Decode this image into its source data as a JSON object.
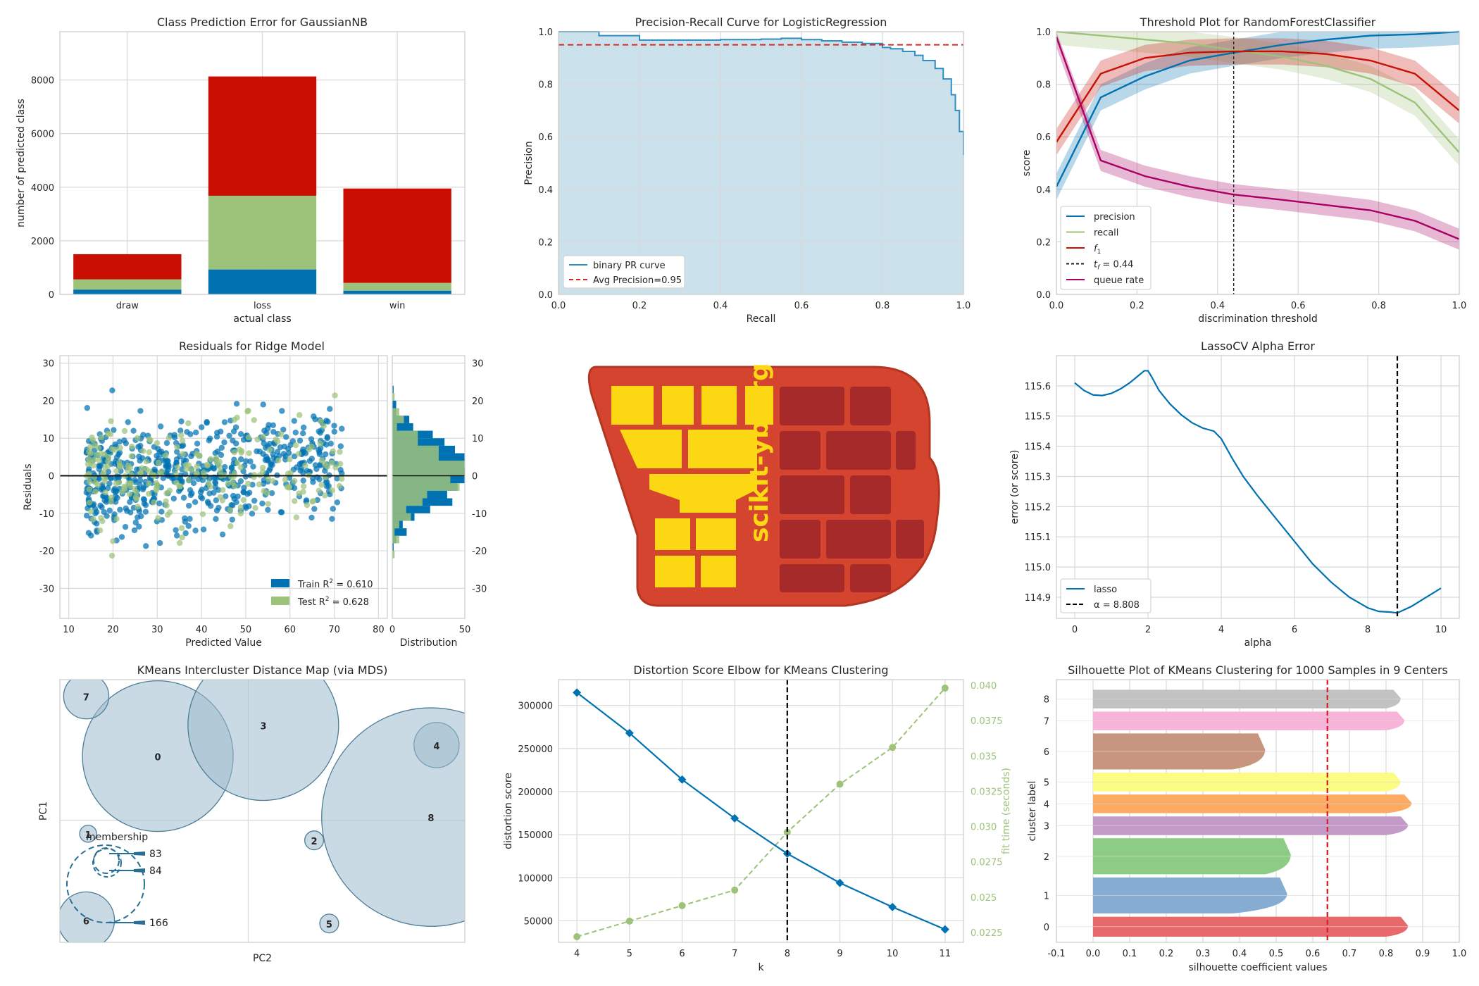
{
  "chart_data": [
    {
      "id": "class-prediction-error",
      "type": "bar",
      "title": "Class Prediction Error for GaussianNB",
      "xlabel": "actual class",
      "ylabel": "number of predicted class",
      "categories": [
        "draw",
        "loss",
        "win"
      ],
      "ylim": [
        0,
        9800
      ],
      "yticks": [
        0,
        2000,
        4000,
        6000,
        8000
      ],
      "series": [
        {
          "color": "#0072b2",
          "values": [
            180,
            930,
            140
          ]
        },
        {
          "color": "#9dc27a",
          "values": [
            380,
            2750,
            290
          ]
        },
        {
          "color": "#c90f03",
          "values": [
            940,
            4450,
            3520
          ]
        }
      ],
      "grid": true
    },
    {
      "id": "precision-recall",
      "type": "area",
      "title": "Precision-Recall Curve for LogisticRegression",
      "xlabel": "Recall",
      "ylabel": "Precision",
      "xlim": [
        0,
        1
      ],
      "ylim": [
        0,
        1
      ],
      "xticks": [
        0.0,
        0.2,
        0.4,
        0.6,
        0.8,
        1.0
      ],
      "yticks": [
        0.0,
        0.2,
        0.4,
        0.6,
        0.8,
        1.0
      ],
      "series": [
        {
          "name": "binary PR curve",
          "color": "#2f8dbf",
          "x": [
            0,
            0.1,
            0.1,
            0.2,
            0.2,
            0.3,
            0.4,
            0.5,
            0.55,
            0.6,
            0.65,
            0.7,
            0.75,
            0.78,
            0.8,
            0.82,
            0.85,
            0.88,
            0.9,
            0.93,
            0.95,
            0.97,
            0.98,
            0.99,
            1.0
          ],
          "y": [
            1.0,
            1.0,
            0.985,
            0.975,
            0.968,
            0.968,
            0.97,
            0.972,
            0.975,
            0.97,
            0.965,
            0.96,
            0.955,
            0.955,
            0.94,
            0.935,
            0.925,
            0.91,
            0.89,
            0.86,
            0.82,
            0.76,
            0.7,
            0.62,
            0.53
          ]
        },
        {
          "name": "Avg Precision=0.95",
          "color": "#d62728",
          "value": 0.95,
          "style": "dashed"
        }
      ],
      "legend": "lower-left",
      "grid": true
    },
    {
      "id": "threshold-plot",
      "type": "line",
      "title": "Threshold Plot for RandomForestClassifier",
      "xlabel": "discrimination threshold",
      "ylabel": "score",
      "xlim": [
        0,
        1
      ],
      "ylim": [
        0,
        1
      ],
      "xticks": [
        0.0,
        0.2,
        0.4,
        0.6,
        0.8,
        1.0
      ],
      "yticks": [
        0.0,
        0.2,
        0.4,
        0.6,
        0.8,
        1.0
      ],
      "x": [
        0,
        0.11,
        0.22,
        0.33,
        0.44,
        0.56,
        0.67,
        0.78,
        0.89,
        1.0
      ],
      "series": [
        {
          "name": "precision",
          "color": "#0072b2",
          "values": [
            0.41,
            0.75,
            0.83,
            0.89,
            0.92,
            0.95,
            0.97,
            0.985,
            0.99,
            1.0
          ],
          "band": 0.05
        },
        {
          "name": "recall",
          "color": "#9dc27a",
          "values": [
            1.0,
            0.985,
            0.97,
            0.955,
            0.93,
            0.905,
            0.87,
            0.82,
            0.73,
            0.54
          ],
          "band": 0.05
        },
        {
          "name": "f1",
          "color": "#c90f03",
          "values": [
            0.58,
            0.84,
            0.9,
            0.92,
            0.925,
            0.925,
            0.915,
            0.89,
            0.84,
            0.7
          ],
          "band": 0.05
        },
        {
          "name": "queue rate",
          "color": "#aa0064",
          "values": [
            0.98,
            0.51,
            0.45,
            0.41,
            0.38,
            0.36,
            0.34,
            0.32,
            0.28,
            0.21
          ],
          "band": 0.04
        }
      ],
      "threshold": {
        "label": "t_f = 0.44",
        "value": 0.44
      },
      "legend_labels": [
        "precision",
        "recall",
        "f",
        "1",
        "t",
        "f",
        " = 0.44",
        "queue rate"
      ],
      "legend": "lower-left",
      "grid": true
    },
    {
      "id": "residuals",
      "type": "scatter",
      "title": "Residuals for Ridge Model",
      "xlabel": "Predicted Value",
      "ylabel": "Residuals",
      "hist_xlabel": "Distribution",
      "xlim": [
        8,
        82
      ],
      "ylim": [
        -38,
        32
      ],
      "xticks": [
        10,
        20,
        30,
        40,
        50,
        60,
        70,
        80
      ],
      "yticks": [
        -30,
        -20,
        -10,
        0,
        10,
        20,
        30
      ],
      "hist_xticks": [
        0,
        50
      ],
      "series": [
        {
          "name": "Train",
          "r2": "0.610",
          "color": "#0072b2",
          "count": 620
        },
        {
          "name": "Test",
          "r2": "0.628",
          "color": "#9dc27a",
          "count": 240
        }
      ],
      "legend_train": "Train R",
      "legend_test": "Test R",
      "legend_sup": "2",
      "legend_train_val": " = 0.610",
      "legend_test_val": " = 0.628",
      "legend": "lower-right",
      "grid": true
    },
    {
      "id": "logo",
      "type": "other",
      "text": "scikit-yb.org"
    },
    {
      "id": "lassocv",
      "type": "line",
      "title": "LassoCV Alpha Error",
      "xlabel": "alpha",
      "ylabel": "error (or score)",
      "xlim": [
        -0.5,
        10.5
      ],
      "ylim": [
        114.83,
        115.7
      ],
      "xticks": [
        0,
        2,
        4,
        6,
        8,
        10
      ],
      "yticks": [
        114.9,
        115.0,
        115.1,
        115.2,
        115.3,
        115.4,
        115.5,
        115.6
      ],
      "series": [
        {
          "name": "lasso",
          "color": "#0072b2",
          "x": [
            0,
            0.25,
            0.5,
            0.75,
            1.0,
            1.25,
            1.5,
            1.75,
            1.9,
            2.0,
            2.1,
            2.3,
            2.6,
            2.9,
            3.2,
            3.5,
            3.8,
            4.0,
            4.3,
            4.6,
            5.0,
            5.5,
            6.0,
            6.5,
            7.0,
            7.5,
            8.0,
            8.3,
            8.6,
            8.808,
            9.2,
            9.6,
            10.0
          ],
          "y": [
            115.61,
            115.585,
            115.57,
            115.568,
            115.575,
            115.59,
            115.61,
            115.635,
            115.65,
            115.65,
            115.63,
            115.585,
            115.54,
            115.505,
            115.478,
            115.46,
            115.45,
            115.425,
            115.36,
            115.3,
            115.235,
            115.16,
            115.085,
            115.01,
            114.95,
            114.9,
            114.865,
            114.853,
            114.851,
            114.848,
            114.87,
            114.9,
            114.93
          ]
        },
        {
          "name": "α = 8.808",
          "color": "#000000",
          "value": 8.808,
          "style": "dashed"
        }
      ],
      "legend_alpha": "α = 8.808",
      "legend": "lower-left",
      "grid": true
    },
    {
      "id": "intercluster",
      "type": "scatter",
      "title": "KMeans Intercluster Distance Map (via MDS)",
      "xlabel": "PC2",
      "ylabel": "PC1",
      "clusters": [
        {
          "label": "0",
          "x": -0.48,
          "y": 0.58,
          "r": 0.4
        },
        {
          "label": "1",
          "x": -0.85,
          "y": -0.12,
          "r": 0.045
        },
        {
          "label": "2",
          "x": 0.35,
          "y": -0.18,
          "r": 0.05
        },
        {
          "label": "3",
          "x": 0.08,
          "y": 0.86,
          "r": 0.4
        },
        {
          "label": "4",
          "x": 1.0,
          "y": 0.68,
          "r": 0.12
        },
        {
          "label": "5",
          "x": 0.43,
          "y": -0.93,
          "r": 0.05
        },
        {
          "label": "6",
          "x": -0.86,
          "y": -0.9,
          "r": 0.15
        },
        {
          "label": "7",
          "x": -0.86,
          "y": 1.12,
          "r": 0.12
        },
        {
          "label": "8",
          "x": 0.97,
          "y": 0.03,
          "r": 0.58
        }
      ],
      "membership_title": "membership",
      "membership": [
        83,
        84,
        166
      ],
      "xlim": [
        -1.0,
        1.15
      ],
      "ylim": [
        -1.1,
        1.27
      ],
      "grid": true
    },
    {
      "id": "elbow",
      "type": "line",
      "title": "Distortion Score Elbow for KMeans Clustering",
      "xlabel": "k",
      "ylabel": "distortion score",
      "y2label": "fit time (seconds)",
      "x": [
        4,
        5,
        6,
        7,
        8,
        9,
        10,
        11
      ],
      "xlim": [
        3.65,
        11.35
      ],
      "ylim": [
        25000,
        330000
      ],
      "y2lim": [
        0.0218,
        0.0404
      ],
      "xticks": [
        4,
        5,
        6,
        7,
        8,
        9,
        10,
        11
      ],
      "yticks": [
        50000,
        100000,
        150000,
        200000,
        250000,
        300000
      ],
      "y2ticks": [
        0.0225,
        0.025,
        0.0275,
        0.03,
        0.0325,
        0.035,
        0.0375,
        0.04
      ],
      "series": [
        {
          "name": "distortion score",
          "color": "#0072b2",
          "values": [
            315000,
            268000,
            214000,
            169000,
            128000,
            94000,
            66000,
            40000
          ]
        },
        {
          "name": "fit time (seconds)",
          "color": "#9dc27a",
          "values": [
            0.0222,
            0.0233,
            0.0244,
            0.0255,
            0.0296,
            0.033,
            0.0356,
            0.0398
          ]
        }
      ],
      "elbow": 8,
      "grid": true
    },
    {
      "id": "silhouette",
      "type": "area",
      "title": "Silhouette Plot of KMeans Clustering for 1000 Samples in 9 Centers",
      "xlabel": "silhouette coefficient values",
      "ylabel": "cluster label",
      "xlim": [
        -0.1,
        1.0
      ],
      "xticks": [
        -0.1,
        0.0,
        0.1,
        0.2,
        0.3,
        0.4,
        0.5,
        0.6,
        0.7,
        0.8,
        0.9,
        1.0
      ],
      "clusters": [
        {
          "label": "0",
          "color": "#e8696b",
          "size": 0.75,
          "max": 0.86,
          "tail": 0.8
        },
        {
          "label": "1",
          "color": "#86acd2",
          "size": 1.35,
          "max": 0.53,
          "tail": 0.38
        },
        {
          "label": "2",
          "color": "#8ccc84",
          "size": 1.35,
          "max": 0.54,
          "tail": 0.47
        },
        {
          "label": "3",
          "color": "#c39ac8",
          "size": 0.7,
          "max": 0.86,
          "tail": 0.8
        },
        {
          "label": "4",
          "color": "#fdaa62",
          "size": 0.7,
          "max": 0.87,
          "tail": 0.8
        },
        {
          "label": "5",
          "color": "#fcfc82",
          "size": 0.7,
          "max": 0.84,
          "tail": 0.8
        },
        {
          "label": "6",
          "color": "#c8967e",
          "size": 1.35,
          "max": 0.47,
          "tail": 0.38
        },
        {
          "label": "7",
          "color": "#f7b4d8",
          "size": 0.7,
          "max": 0.85,
          "tail": 0.8
        },
        {
          "label": "8",
          "color": "#c2c2c2",
          "size": 0.7,
          "max": 0.84,
          "tail": 0.8
        }
      ],
      "avg": 0.64,
      "grid": true
    }
  ]
}
